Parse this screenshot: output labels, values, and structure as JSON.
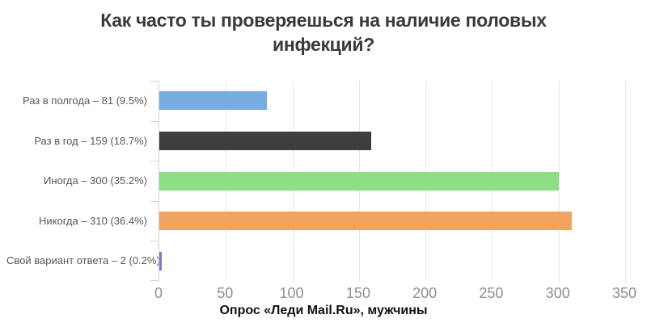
{
  "chart_data": {
    "type": "bar",
    "orientation": "horizontal",
    "title": "Как часто ты проверяешься на наличие половых инфекций?",
    "caption": "Опрос «Леди Mail.Ru», мужчины",
    "categories": [
      "Раз в полгода",
      "Раз в год",
      "Иногда",
      "Никогда",
      "Свой вариант ответа"
    ],
    "values": [
      81,
      159,
      300,
      310,
      2
    ],
    "percents": [
      "9.5%",
      "18.7%",
      "35.2%",
      "36.4%",
      "0.2%"
    ],
    "labels": [
      "Раз в полгода – 81 (9.5%)",
      "Раз в год – 159 (18.7%)",
      "Иногда – 300 (35.2%)",
      "Никогда – 310 (36.4%)",
      "Свой вариант ответа – 2 (0.2%)"
    ],
    "bar_colors": [
      "#78ADE3",
      "#3E3E40",
      "#8CDF84",
      "#F0A45F",
      "#7B79D0"
    ],
    "xlim": [
      0,
      350
    ],
    "x_ticks": [
      0,
      50,
      100,
      150,
      200,
      250,
      300,
      350
    ],
    "grid": true,
    "legend": "none",
    "title_color": "#3a3a3a",
    "label_color": "#56575c",
    "tick_label_color": "#8f8f8f",
    "axis_color": "#ccd3da",
    "grid_color": "#e7e7e7",
    "background": "#ffffff"
  }
}
